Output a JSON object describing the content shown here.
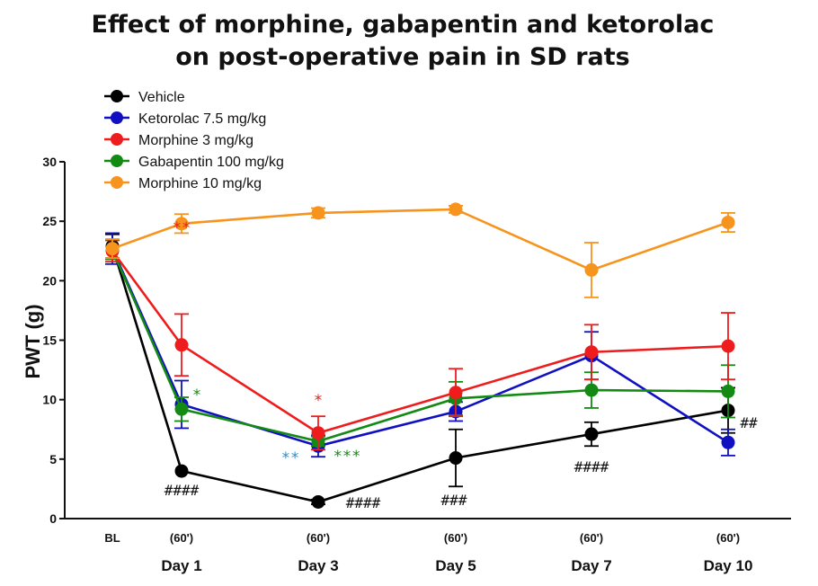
{
  "chart_data": {
    "type": "line",
    "title_lines": [
      "Effect of morphine, gabapentin and ketorolac",
      "on post-operative pain in SD rats"
    ],
    "ylabel": "PWT (g)",
    "ylim": [
      0,
      30
    ],
    "yticks": [
      "0",
      "5",
      "10",
      "15",
      "20",
      "25",
      "30"
    ],
    "categories_top": [
      "BL",
      "(60')",
      "(60')",
      "(60')",
      "(60')",
      "(60')"
    ],
    "categories_bottom": [
      "",
      "Day 1",
      "Day 3",
      "Day 5",
      "Day 7",
      "Day 10"
    ],
    "legend_position": "top-left",
    "series": [
      {
        "name": "Vehicle",
        "color": "#000000",
        "values": [
          22.9,
          4.0,
          1.4,
          5.1,
          7.1,
          9.1
        ],
        "errors": [
          1.0,
          0.0,
          0.2,
          2.4,
          1.0,
          1.9
        ]
      },
      {
        "name": "Ketorolac 7.5 mg/kg",
        "color": "#1010c0",
        "values": [
          22.7,
          9.6,
          6.1,
          9.0,
          13.7,
          6.4
        ],
        "errors": [
          1.3,
          2.0,
          0.9,
          0.8,
          2.0,
          1.1
        ]
      },
      {
        "name": "Morphine 3 mg/kg",
        "color": "#ee1c1c",
        "values": [
          22.5,
          14.6,
          7.2,
          10.6,
          14.0,
          14.5
        ],
        "errors": [
          0.9,
          2.6,
          1.4,
          2.0,
          2.3,
          2.8
        ]
      },
      {
        "name": "Gabapentin 100 mg/kg",
        "color": "#138a13",
        "values": [
          22.6,
          9.2,
          6.5,
          10.1,
          10.8,
          10.7
        ],
        "errors": [
          0.8,
          1.0,
          0.4,
          1.4,
          1.5,
          2.2
        ]
      },
      {
        "name": "Morphine 10 mg/kg",
        "color": "#f7941d",
        "values": [
          22.7,
          24.8,
          25.7,
          26.0,
          20.9,
          24.9
        ],
        "errors": [
          0.8,
          0.8,
          0.4,
          0.3,
          2.3,
          0.8
        ]
      }
    ],
    "annotations": [
      {
        "text": "**",
        "color": "#ee1c1c"
      },
      {
        "text": "*",
        "color": "#138a13"
      },
      {
        "text": "*",
        "color": "#ee1c1c"
      },
      {
        "text": "**",
        "color": "#2a8fd6"
      },
      {
        "text": "***",
        "color": "#138a13"
      },
      {
        "text": "####",
        "color": "#111111"
      },
      {
        "text": "####",
        "color": "#111111"
      },
      {
        "text": "###",
        "color": "#111111"
      },
      {
        "text": "####",
        "color": "#111111"
      },
      {
        "text": "##",
        "color": "#111111"
      }
    ]
  }
}
